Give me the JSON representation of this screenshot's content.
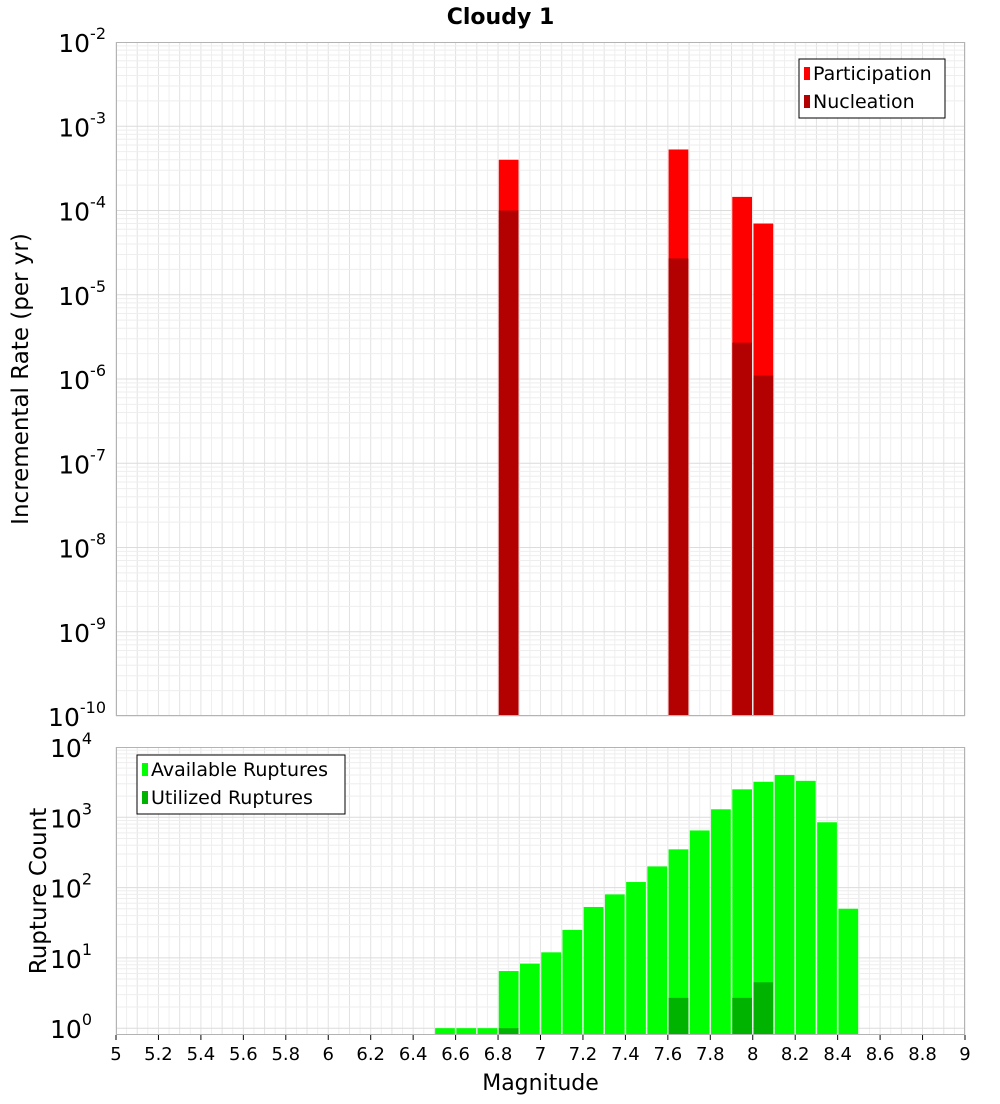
{
  "chart_data": [
    {
      "type": "bar",
      "title": "Cloudy 1",
      "xlabel": "",
      "ylabel": "Incremental Rate (per yr)",
      "yscale": "log",
      "ylim_exp": [
        -10,
        -2
      ],
      "xlim": [
        5,
        9
      ],
      "bin_width": 0.1,
      "legend_position": "top-right",
      "series": [
        {
          "name": "Participation",
          "color": "#ff0000",
          "points": [
            {
              "x": 6.85,
              "y": 0.0004
            },
            {
              "x": 7.65,
              "y": 0.00053
            },
            {
              "x": 7.95,
              "y": 0.000145
            },
            {
              "x": 8.05,
              "y": 7e-05
            }
          ]
        },
        {
          "name": "Nucleation",
          "color": "#b30000",
          "points": [
            {
              "x": 6.85,
              "y": 0.0001
            },
            {
              "x": 7.65,
              "y": 2.7e-05
            },
            {
              "x": 7.95,
              "y": 2.7e-06
            },
            {
              "x": 8.05,
              "y": 1.1e-06
            }
          ]
        }
      ]
    },
    {
      "type": "bar",
      "title": "",
      "xlabel": "Magnitude",
      "ylabel": "Rupture Count",
      "yscale": "log",
      "ylim_exp": [
        0,
        4
      ],
      "ymin": 0.8,
      "xlim": [
        5,
        9
      ],
      "bin_width": 0.1,
      "legend_position": "top-left",
      "x_ticks": [
        "5",
        "5.2",
        "5.4",
        "5.6",
        "5.8",
        "6",
        "6.2",
        "6.4",
        "6.6",
        "6.8",
        "7",
        "7.2",
        "7.4",
        "7.6",
        "7.8",
        "8",
        "8.2",
        "8.4",
        "8.6",
        "8.8",
        "9"
      ],
      "series": [
        {
          "name": "Available Ruptures",
          "color": "#00ff00",
          "points": [
            {
              "x": 6.55,
              "y": 1
            },
            {
              "x": 6.65,
              "y": 1
            },
            {
              "x": 6.75,
              "y": 1
            },
            {
              "x": 6.85,
              "y": 6.5
            },
            {
              "x": 6.95,
              "y": 8.3
            },
            {
              "x": 7.05,
              "y": 12
            },
            {
              "x": 7.15,
              "y": 25
            },
            {
              "x": 7.25,
              "y": 53
            },
            {
              "x": 7.35,
              "y": 80
            },
            {
              "x": 7.45,
              "y": 120
            },
            {
              "x": 7.55,
              "y": 200
            },
            {
              "x": 7.65,
              "y": 350
            },
            {
              "x": 7.75,
              "y": 650
            },
            {
              "x": 7.85,
              "y": 1300
            },
            {
              "x": 7.95,
              "y": 2500
            },
            {
              "x": 8.05,
              "y": 3200
            },
            {
              "x": 8.15,
              "y": 4000
            },
            {
              "x": 8.25,
              "y": 3300
            },
            {
              "x": 8.35,
              "y": 850
            },
            {
              "x": 8.45,
              "y": 50
            }
          ]
        },
        {
          "name": "Utilized Ruptures",
          "color": "#00b300",
          "points": [
            {
              "x": 6.85,
              "y": 1
            },
            {
              "x": 7.65,
              "y": 2.7
            },
            {
              "x": 7.95,
              "y": 2.7
            },
            {
              "x": 8.05,
              "y": 4.5
            }
          ]
        }
      ]
    }
  ]
}
